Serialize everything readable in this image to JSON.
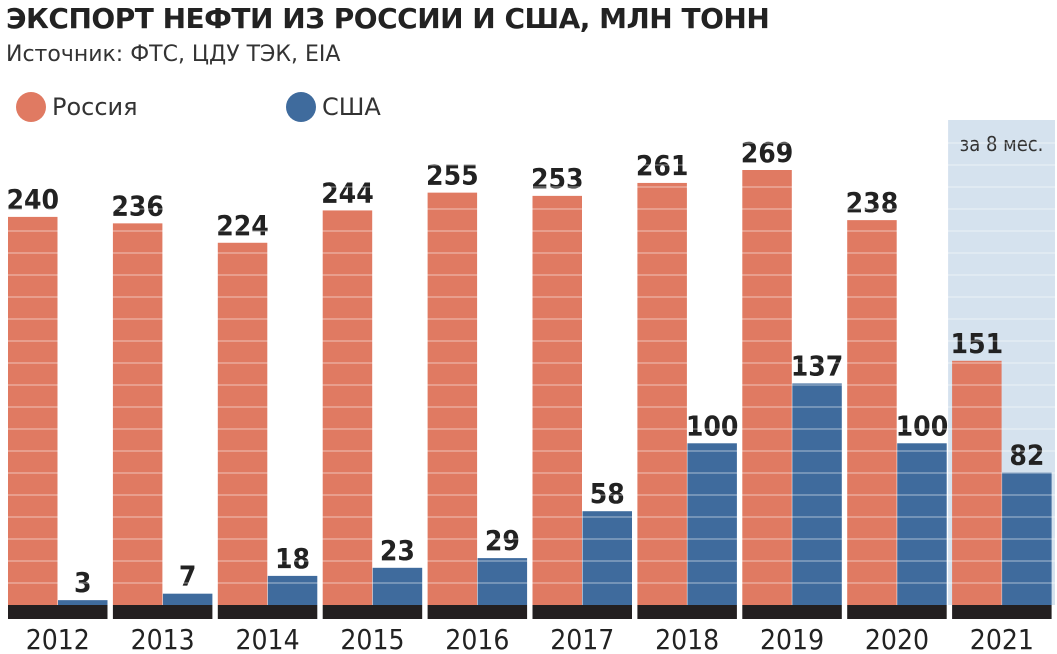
{
  "header": {
    "title": "ЭКСПОРТ НЕФТИ ИЗ РОССИИ И США, МЛН ТОНН",
    "source": "Источник: ФТС, ЦДУ ТЭК, EIA"
  },
  "legend": [
    {
      "name": "Россия",
      "color": "#e07a62"
    },
    {
      "name": "США",
      "color": "#3f6b9d"
    }
  ],
  "chart_data": {
    "type": "bar",
    "title": "ЭКСПОРТ НЕФТИ ИЗ РОССИИ И США, МЛН ТОНН",
    "xlabel": "",
    "ylabel": "",
    "grid": false,
    "legend_position": "top-left",
    "categories": [
      "2012",
      "2013",
      "2014",
      "2015",
      "2016",
      "2017",
      "2018",
      "2019",
      "2020",
      "2021"
    ],
    "series": [
      {
        "name": "Россия",
        "color": "#e07a62",
        "values": [
          240,
          236,
          224,
          244,
          255,
          253,
          261,
          269,
          238,
          151
        ]
      },
      {
        "name": "США",
        "color": "#3f6b9d",
        "values": [
          3,
          7,
          18,
          23,
          29,
          58,
          100,
          137,
          100,
          82
        ]
      }
    ],
    "annotations": [
      {
        "category": "2021",
        "text": "за 8 мес."
      }
    ],
    "ylim": [
      0,
      269
    ]
  }
}
